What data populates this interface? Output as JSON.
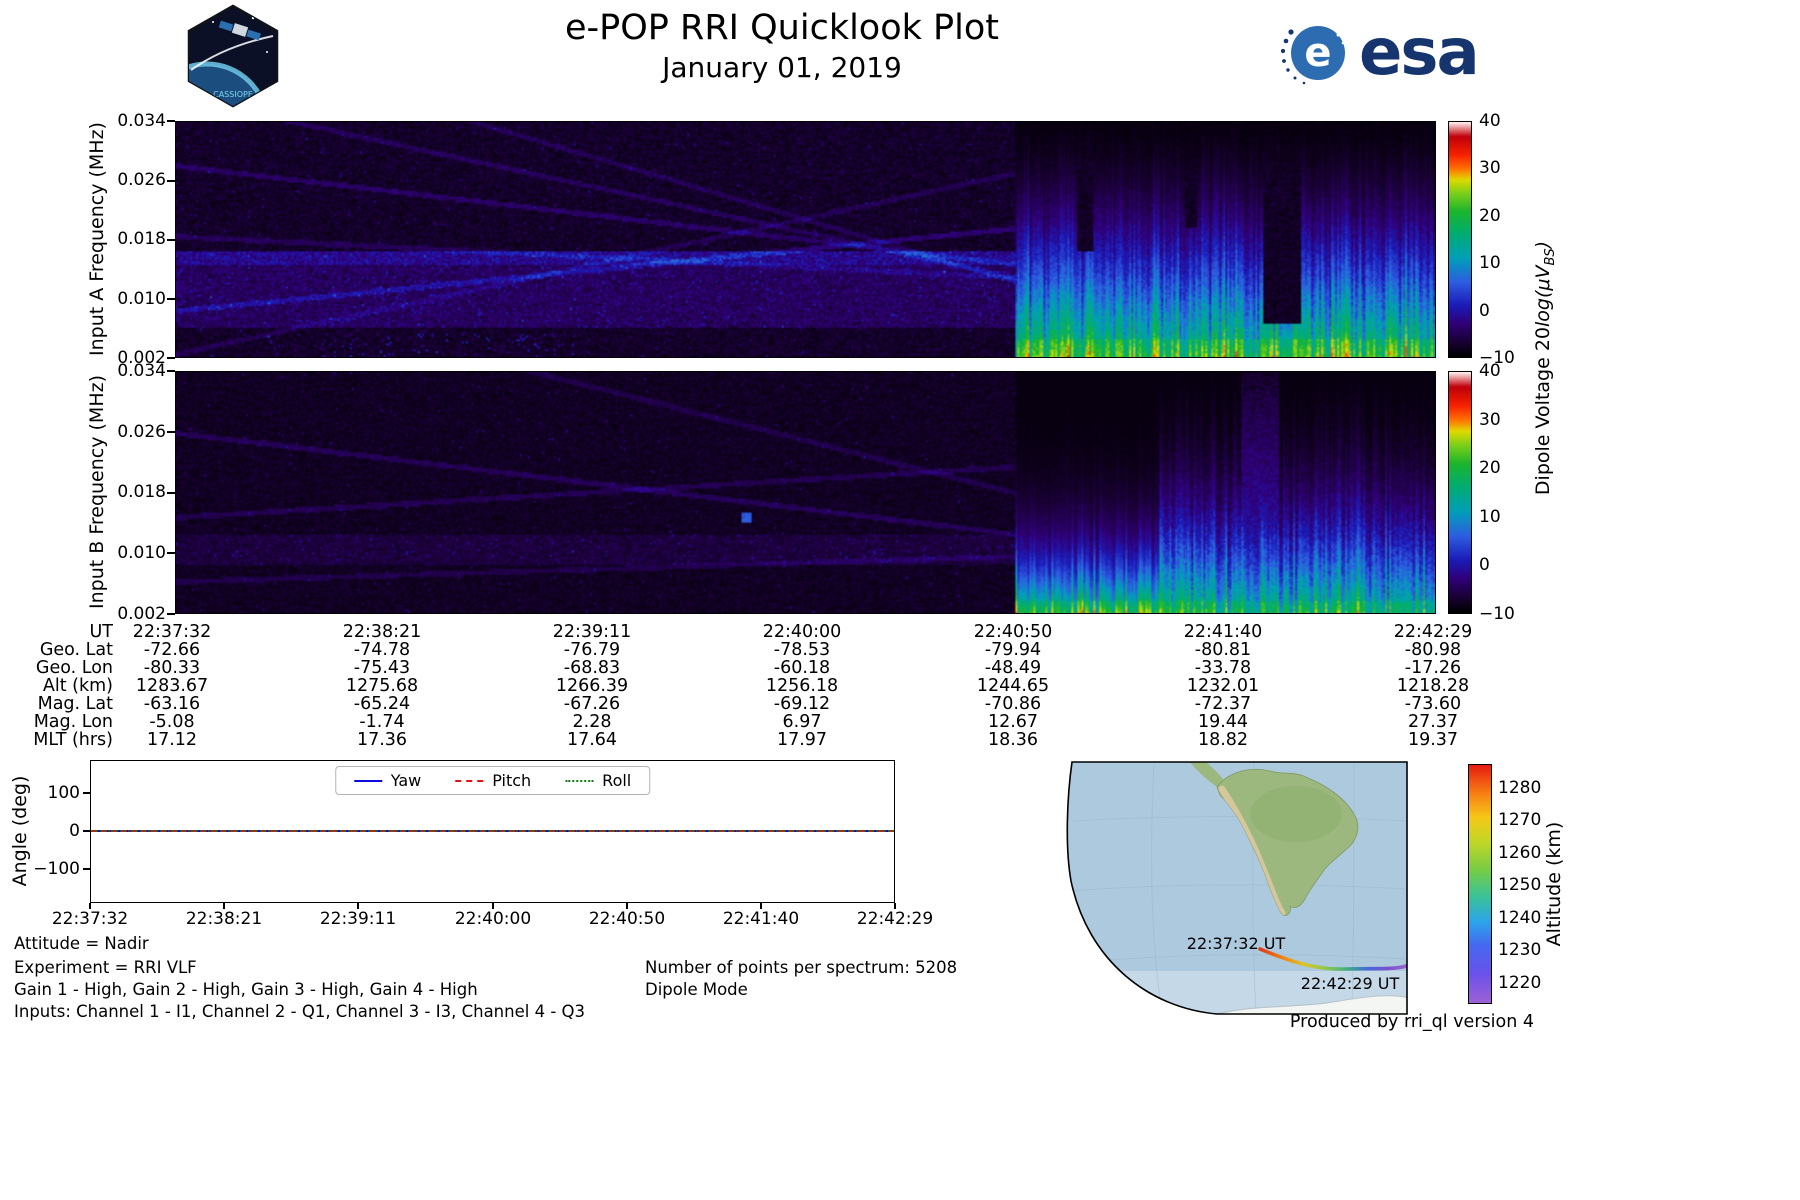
{
  "header": {
    "title": "e-POP RRI Quicklook Plot",
    "subtitle": "January 01, 2019",
    "patch_label": "CASSIOPE",
    "esa_label": "esa"
  },
  "spectrograms": {
    "colorbar_label_prefix": "Dipole Voltage 20",
    "colorbar_label_math": "log(μV",
    "colorbar_label_sub": "BS",
    "colorbar_label_suffix": ")",
    "colorbar_ticks": [
      "40",
      "30",
      "20",
      "10",
      "0",
      "−10"
    ],
    "panel_a": {
      "ylabel": "Input A Frequency (MHz)",
      "yticks": [
        "0.034",
        "0.026",
        "0.018",
        "0.010",
        "0.002"
      ]
    },
    "panel_b": {
      "ylabel": "Input B Frequency (MHz)",
      "yticks": [
        "0.034",
        "0.026",
        "0.018",
        "0.010",
        "0.002"
      ]
    }
  },
  "ephemeris": {
    "rows": [
      {
        "label": "UT",
        "values": [
          "22:37:32",
          "22:38:21",
          "22:39:11",
          "22:40:00",
          "22:40:50",
          "22:41:40",
          "22:42:29"
        ]
      },
      {
        "label": "Geo. Lat",
        "values": [
          "-72.66",
          "-74.78",
          "-76.79",
          "-78.53",
          "-79.94",
          "-80.81",
          "-80.98"
        ]
      },
      {
        "label": "Geo. Lon",
        "values": [
          "-80.33",
          "-75.43",
          "-68.83",
          "-60.18",
          "-48.49",
          "-33.78",
          "-17.26"
        ]
      },
      {
        "label": "Alt (km)",
        "values": [
          "1283.67",
          "1275.68",
          "1266.39",
          "1256.18",
          "1244.65",
          "1232.01",
          "1218.28"
        ]
      },
      {
        "label": "Mag. Lat",
        "values": [
          "-63.16",
          "-65.24",
          "-67.26",
          "-69.12",
          "-70.86",
          "-72.37",
          "-73.60"
        ]
      },
      {
        "label": "Mag. Lon",
        "values": [
          "-5.08",
          "-1.74",
          "2.28",
          "6.97",
          "12.67",
          "19.44",
          "27.37"
        ]
      },
      {
        "label": "MLT (hrs)",
        "values": [
          "17.12",
          "17.36",
          "17.64",
          "17.97",
          "18.36",
          "18.82",
          "19.37"
        ]
      }
    ]
  },
  "angle_plot": {
    "ylabel": "Angle (deg)",
    "yticks": [
      "100",
      "0",
      "−100"
    ],
    "xticks": [
      "22:37:32",
      "22:38:21",
      "22:39:11",
      "22:40:00",
      "22:40:50",
      "22:41:40",
      "22:42:29"
    ],
    "legend": [
      {
        "label": "Yaw",
        "color": "#0b0bdf",
        "style": "solid"
      },
      {
        "label": "Pitch",
        "color": "#e01212",
        "style": "dashed"
      },
      {
        "label": "Roll",
        "color": "#127812",
        "style": "dotted"
      }
    ]
  },
  "footnotes": {
    "attitude": "Attitude = Nadir",
    "experiment": "Experiment = RRI VLF",
    "gains": "Gain 1 - High, Gain 2 - High, Gain 3 - High, Gain 4 - High",
    "inputs": "Inputs: Channel 1 - I1, Channel 2 - Q1, Channel 3 - I3, Channel 4 - Q3",
    "points": "Number of points per spectrum: 5208",
    "mode": "Dipole Mode"
  },
  "map": {
    "start_label": "22:37:32 UT",
    "end_label": "22:42:29 UT",
    "colorbar_label": "Altitude (km)",
    "colorbar_ticks": [
      "1280",
      "1270",
      "1260",
      "1250",
      "1240",
      "1230",
      "1220"
    ]
  },
  "credit": "Produced by rri_ql version 4",
  "chart_data": [
    {
      "type": "heatmap",
      "name": "input_a_spectrogram",
      "title": "Input A spectrogram",
      "xlabel": "UT",
      "x_range": [
        "22:37:32",
        "22:42:29"
      ],
      "ylabel": "Input A Frequency (MHz)",
      "y_range": [
        0.002,
        0.034
      ],
      "y_ticks": [
        0.002,
        0.01,
        0.018,
        0.026,
        0.034
      ],
      "color_label": "Dipole Voltage 20log(μV BS)",
      "color_range": [
        -10,
        40
      ],
      "color_ticks": [
        -10,
        0,
        10,
        20,
        30,
        40
      ],
      "features": [
        "dark blue/purple low-level noise background before 22:40:50",
        "faint diagonal interference traces crossing the panel",
        "speckled blue-teal enhanced band near 0.006-0.016 MHz across the left section",
        "after 22:40:50 broadband emission strongest (~20 dB, green) below ~0.014 MHz with vertical striations and dark dropout columns near 22:41:50"
      ]
    },
    {
      "type": "heatmap",
      "name": "input_b_spectrogram",
      "title": "Input B spectrogram",
      "xlabel": "UT",
      "x_range": [
        "22:37:32",
        "22:42:29"
      ],
      "ylabel": "Input B Frequency (MHz)",
      "y_range": [
        0.002,
        0.034
      ],
      "y_ticks": [
        0.002,
        0.01,
        0.018,
        0.026,
        0.034
      ],
      "color_range": [
        -10,
        40
      ],
      "features": [
        "darker noise background than Input A before 22:40:50 with faint diagonal traces",
        "after 22:40:50 strong green emission confined below ~0.010 MHz",
        "bright blue striated columns rising to mid frequencies near 22:42:00"
      ]
    },
    {
      "type": "line",
      "name": "attitude_angles",
      "ylabel": "Angle (deg)",
      "ylim": [
        -190,
        190
      ],
      "y_ticks": [
        -100,
        0,
        100
      ],
      "x": [
        "22:37:32",
        "22:38:21",
        "22:39:11",
        "22:40:00",
        "22:40:50",
        "22:41:40",
        "22:42:29"
      ],
      "series": [
        {
          "name": "Yaw",
          "values": [
            0,
            0,
            0,
            0,
            0,
            0,
            0
          ]
        },
        {
          "name": "Pitch",
          "values": [
            0,
            0,
            0,
            0,
            0,
            0,
            0
          ]
        },
        {
          "name": "Roll",
          "values": [
            0,
            0,
            0,
            0,
            0,
            0,
            0
          ]
        }
      ],
      "legend_position": "upper center",
      "grid": false
    },
    {
      "type": "table",
      "name": "ephemeris",
      "columns": [
        "22:37:32",
        "22:38:21",
        "22:39:11",
        "22:40:00",
        "22:40:50",
        "22:41:40",
        "22:42:29"
      ],
      "rows": [
        {
          "label": "Geo. Lat",
          "values": [
            -72.66,
            -74.78,
            -76.79,
            -78.53,
            -79.94,
            -80.81,
            -80.98
          ]
        },
        {
          "label": "Geo. Lon",
          "values": [
            -80.33,
            -75.43,
            -68.83,
            -60.18,
            -48.49,
            -33.78,
            -17.26
          ]
        },
        {
          "label": "Alt (km)",
          "values": [
            1283.67,
            1275.68,
            1266.39,
            1256.18,
            1244.65,
            1232.01,
            1218.28
          ]
        },
        {
          "label": "Mag. Lat",
          "values": [
            -63.16,
            -65.24,
            -67.26,
            -69.12,
            -70.86,
            -72.37,
            -73.6
          ]
        },
        {
          "label": "Mag. Lon",
          "values": [
            -5.08,
            -1.74,
            2.28,
            6.97,
            12.67,
            19.44,
            27.37
          ]
        },
        {
          "label": "MLT (hrs)",
          "values": [
            17.12,
            17.36,
            17.64,
            17.97,
            18.36,
            18.82,
            19.37
          ]
        }
      ]
    },
    {
      "type": "line",
      "name": "ground_track_map",
      "region": "South America and Antarctic sector",
      "track_start": {
        "ut": "22:37:32",
        "alt_km": 1283.67
      },
      "track_end": {
        "ut": "22:42:29",
        "alt_km": 1218.28
      },
      "colorbar": {
        "label": "Altitude (km)",
        "ticks": [
          1220,
          1230,
          1240,
          1250,
          1260,
          1270,
          1280
        ]
      }
    }
  ]
}
